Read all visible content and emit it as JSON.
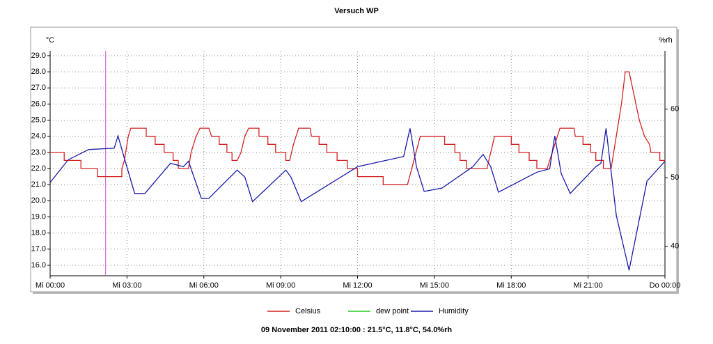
{
  "chart_data": {
    "type": "line",
    "title": "Versuch WP",
    "ylabel": "°C",
    "y2label": "%rh",
    "xlim": [
      0,
      24
    ],
    "xticks": [
      {
        "value": 0,
        "label": "Mi 00:00"
      },
      {
        "value": 3,
        "label": "Mi 03:00"
      },
      {
        "value": 6,
        "label": "Mi 06:00"
      },
      {
        "value": 9,
        "label": "Mi 09:00"
      },
      {
        "value": 12,
        "label": "Mi 12:00"
      },
      {
        "value": 15,
        "label": "Mi 15:00"
      },
      {
        "value": 18,
        "label": "Mi 18:00"
      },
      {
        "value": 21,
        "label": "Mi 21:00"
      },
      {
        "value": 24,
        "label": "Do 00:00"
      }
    ],
    "ylim": [
      15.35,
      29.3
    ],
    "yticks": [
      {
        "value": 16,
        "label": "16.0"
      },
      {
        "value": 17,
        "label": "17.0"
      },
      {
        "value": 18,
        "label": "18.0"
      },
      {
        "value": 19,
        "label": "19.0"
      },
      {
        "value": 20,
        "label": "20.0"
      },
      {
        "value": 21,
        "label": "21.0"
      },
      {
        "value": 22,
        "label": "22.0"
      },
      {
        "value": 23,
        "label": "23.0"
      },
      {
        "value": 24,
        "label": "24.0"
      },
      {
        "value": 25,
        "label": "25.0"
      },
      {
        "value": 26,
        "label": "26.0"
      },
      {
        "value": 27,
        "label": "27.0"
      },
      {
        "value": 28,
        "label": "28.0"
      },
      {
        "value": 29,
        "label": "29.0"
      }
    ],
    "y2lim": [
      35.7,
      68.5
    ],
    "y2ticks": [
      40,
      50,
      60
    ],
    "grid": true,
    "cursor": 2.1667,
    "cursor_color": "#cc55cc",
    "status": "09 November 2011 02:10:00 : 21.5°C, 11.8°C, 54.0%rh",
    "series": [
      {
        "name": "Celsius",
        "color": "#d42020",
        "axis": "y",
        "x": [
          0,
          0.55,
          0.55,
          1.2,
          1.2,
          1.85,
          1.85,
          2.8,
          2.8,
          2.9,
          2.95,
          3.0,
          3.05,
          3.15,
          3.75,
          3.75,
          4.1,
          4.1,
          4.45,
          4.45,
          4.8,
          4.8,
          5.0,
          5.0,
          5.4,
          5.5,
          5.7,
          5.85,
          6.2,
          6.3,
          6.6,
          6.6,
          6.9,
          6.9,
          7.1,
          7.1,
          7.3,
          7.45,
          7.6,
          7.75,
          8.15,
          8.15,
          8.5,
          8.5,
          8.8,
          8.8,
          9.2,
          9.2,
          9.35,
          9.5,
          9.7,
          10.15,
          10.2,
          10.5,
          10.5,
          10.8,
          10.8,
          11.2,
          11.2,
          11.6,
          11.6,
          12.0,
          12.0,
          13.0,
          13.0,
          13.95,
          14.2,
          14.45,
          15.4,
          15.4,
          15.8,
          15.8,
          16.0,
          16.0,
          16.25,
          16.25,
          17.05,
          17.2,
          17.35,
          18.0,
          18.0,
          18.3,
          18.3,
          18.7,
          18.7,
          19.0,
          19.0,
          19.4,
          19.6,
          19.8,
          19.9,
          20.45,
          20.5,
          20.8,
          20.8,
          21.1,
          21.1,
          21.3,
          21.3,
          21.6,
          21.6,
          21.9,
          22.1,
          22.3,
          22.45,
          22.6,
          22.8,
          23.0,
          23.2,
          23.4,
          23.45,
          23.8,
          23.8,
          24
        ],
        "values": [
          23,
          23,
          22.5,
          22.5,
          22,
          22,
          21.5,
          21.5,
          22,
          22.5,
          23,
          23.5,
          24,
          24.5,
          24.5,
          24,
          24,
          23.5,
          23.5,
          23,
          23,
          22.5,
          22.5,
          22,
          22,
          23,
          24,
          24.5,
          24.5,
          24,
          24,
          23.5,
          23.5,
          23,
          23,
          22.5,
          22.5,
          23,
          24,
          24.5,
          24.5,
          24,
          24,
          23.5,
          23.5,
          23,
          23,
          22.5,
          22.5,
          23.5,
          24.5,
          24.5,
          24,
          24,
          23.5,
          23.5,
          23,
          23,
          22.5,
          22.5,
          22,
          22,
          21.5,
          21.5,
          21,
          21,
          22.5,
          24,
          24,
          23.5,
          23.5,
          23,
          23,
          22.5,
          22.5,
          22,
          22,
          23,
          24,
          24,
          23.5,
          23.5,
          23,
          23,
          22.5,
          22.5,
          22,
          22,
          23,
          24,
          24.5,
          24.5,
          24,
          24,
          23.5,
          23.5,
          23,
          23,
          22.5,
          22.5,
          22,
          22,
          24,
          26,
          28,
          28,
          26.5,
          25,
          24,
          23.5,
          23,
          23,
          22.5,
          22.5
        ]
      },
      {
        "name": "dew point",
        "color": "#22cc22",
        "axis": "y",
        "x": [],
        "values": []
      },
      {
        "name": "Humidity",
        "color": "#1a1aaa",
        "axis": "y2",
        "x": [
          0,
          0.7,
          1.5,
          2.5,
          2.65,
          2.9,
          3.3,
          3.7,
          4.7,
          5.2,
          5.4,
          5.9,
          6.2,
          7.3,
          7.6,
          7.9,
          9.2,
          9.4,
          9.8,
          12.0,
          13.8,
          14.05,
          14.3,
          14.6,
          15.3,
          16.5,
          16.9,
          17.2,
          17.5,
          19.0,
          19.5,
          19.7,
          19.95,
          20.3,
          21.3,
          21.5,
          21.7,
          22.1,
          22.6,
          23.3,
          24
        ],
        "values": [
          49.3,
          52.6,
          54.1,
          54.3,
          56.1,
          52.8,
          47.7,
          47.7,
          52.1,
          51.6,
          52.4,
          47.0,
          47.0,
          51.1,
          50.1,
          46.5,
          51.1,
          50.1,
          46.5,
          51.6,
          53.1,
          57.2,
          51.6,
          48.0,
          48.5,
          51.6,
          53.4,
          51.6,
          47.9,
          50.8,
          51.3,
          56.1,
          50.6,
          47.7,
          51.6,
          52.1,
          57.2,
          44.5,
          36.5,
          49.5,
          52.4
        ]
      }
    ]
  }
}
